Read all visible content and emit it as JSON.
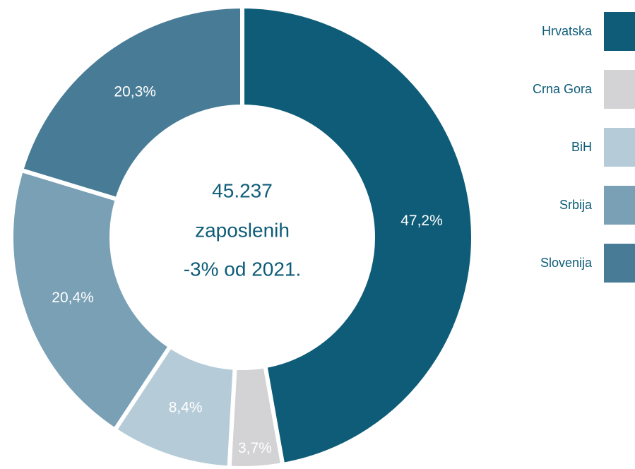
{
  "chart_data": {
    "type": "pie",
    "categories": [
      "Hrvatska",
      "Crna Gora",
      "BiH",
      "Srbija",
      "Slovenija"
    ],
    "values": [
      47.2,
      3.7,
      8.4,
      20.4,
      20.3
    ],
    "value_labels": [
      "47,2%",
      "3,7%",
      "8,4%",
      "20,4%",
      "20,3%"
    ],
    "colors": [
      "#0e5c78",
      "#d3d3d5",
      "#b5ccd8",
      "#7aa0b5",
      "#487c96"
    ],
    "annotations": [
      "45.237",
      "zaposlenih",
      "-3% od 2021."
    ],
    "legend": "right"
  }
}
